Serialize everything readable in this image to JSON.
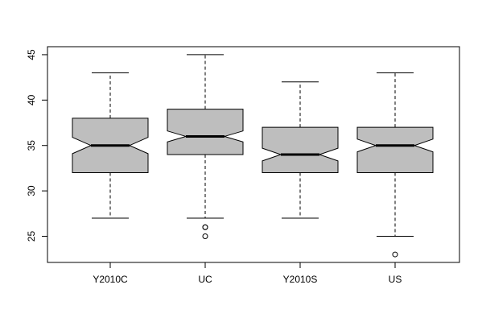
{
  "chart_data": {
    "type": "boxplot",
    "categories": [
      "Y2010C",
      "UC",
      "Y2010S",
      "US"
    ],
    "boxes": [
      {
        "whislo": 27,
        "q1": 32,
        "med": 35,
        "q3": 38,
        "whishi": 43,
        "notch": [
          34.1,
          35.9
        ],
        "outliers": []
      },
      {
        "whislo": 27,
        "q1": 34,
        "med": 36,
        "q3": 39,
        "whishi": 45,
        "notch": [
          35.4,
          36.6
        ],
        "outliers": [
          26,
          26,
          25
        ]
      },
      {
        "whislo": 27,
        "q1": 32,
        "med": 34,
        "q3": 37,
        "whishi": 42,
        "notch": [
          33.3,
          34.7
        ],
        "outliers": []
      },
      {
        "whislo": 25,
        "q1": 32,
        "med": 35,
        "q3": 37,
        "whishi": 43,
        "notch": [
          34.3,
          35.7
        ],
        "outliers": [
          23
        ]
      }
    ],
    "color": "#bebebe",
    "ylim": [
      22.12,
      45.88
    ],
    "yticks": [
      25,
      30,
      35,
      40,
      45
    ],
    "grid": false
  }
}
